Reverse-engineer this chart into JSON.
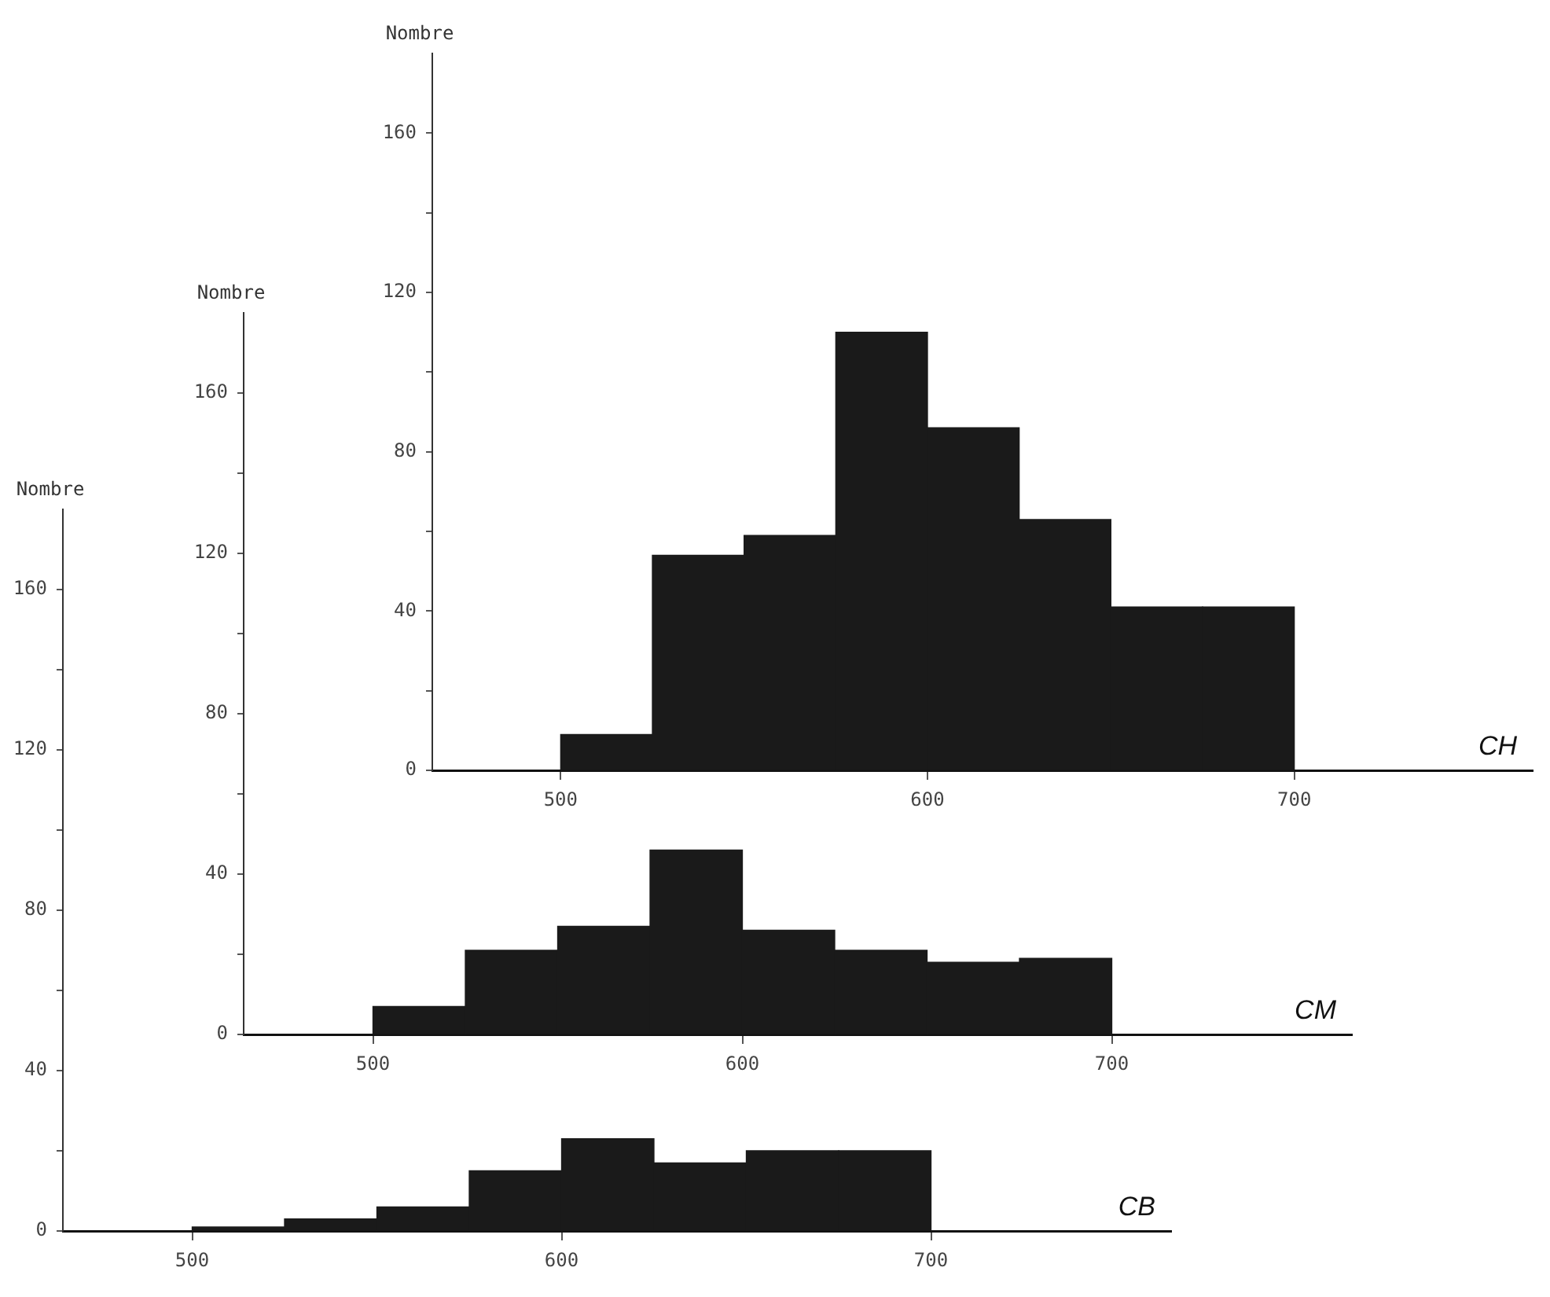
{
  "chart_data": [
    {
      "type": "histogram",
      "ylabel": "Nombre",
      "bins": [
        500,
        525,
        550,
        575,
        600,
        625,
        650,
        675,
        700
      ],
      "values": [
        9,
        54,
        59,
        110,
        86,
        63,
        41,
        41
      ],
      "color": "#1a1a1a",
      "xlim": [
        465,
        765
      ],
      "ylim": [
        0,
        180
      ],
      "xticks": [
        500,
        600,
        700
      ],
      "yticks": [
        0,
        {
          "value": 20,
          "label": null
        },
        40,
        {
          "value": 60,
          "label": null
        },
        80,
        {
          "value": 100,
          "label": null
        },
        120,
        {
          "value": 140,
          "label": null
        },
        160
      ],
      "annotations": [
        "CH"
      ],
      "legend": false
    },
    {
      "type": "histogram",
      "ylabel": "Nombre",
      "bins": [
        500,
        525,
        550,
        575,
        600,
        625,
        650,
        675,
        700
      ],
      "values": [
        7,
        21,
        27,
        46,
        26,
        21,
        18,
        19
      ],
      "color": "#1a1a1a",
      "xlim": [
        465,
        765
      ],
      "ylim": [
        0,
        180
      ],
      "xticks": [
        500,
        600,
        700
      ],
      "yticks": [
        0,
        {
          "value": 20,
          "label": null
        },
        40,
        {
          "value": 60,
          "label": null
        },
        80,
        {
          "value": 100,
          "label": null
        },
        120,
        {
          "value": 140,
          "label": null
        },
        160
      ],
      "annotations": [
        "CM"
      ],
      "legend": false
    },
    {
      "type": "histogram",
      "ylabel": "Nombre",
      "bins": [
        500,
        525,
        550,
        575,
        600,
        625,
        650,
        675,
        700
      ],
      "values": [
        1,
        3,
        6,
        15,
        23,
        17,
        20,
        20
      ],
      "color": "#1a1a1a",
      "xlim": [
        465,
        765
      ],
      "ylim": [
        0,
        180
      ],
      "xticks": [
        500,
        600,
        700
      ],
      "yticks": [
        0,
        {
          "value": 20,
          "label": null
        },
        40,
        {
          "value": 60,
          "label": null
        },
        80,
        {
          "value": 100,
          "label": null
        },
        120,
        {
          "value": 140,
          "label": null
        },
        160
      ],
      "annotations": [
        "CB"
      ],
      "legend": false
    }
  ]
}
